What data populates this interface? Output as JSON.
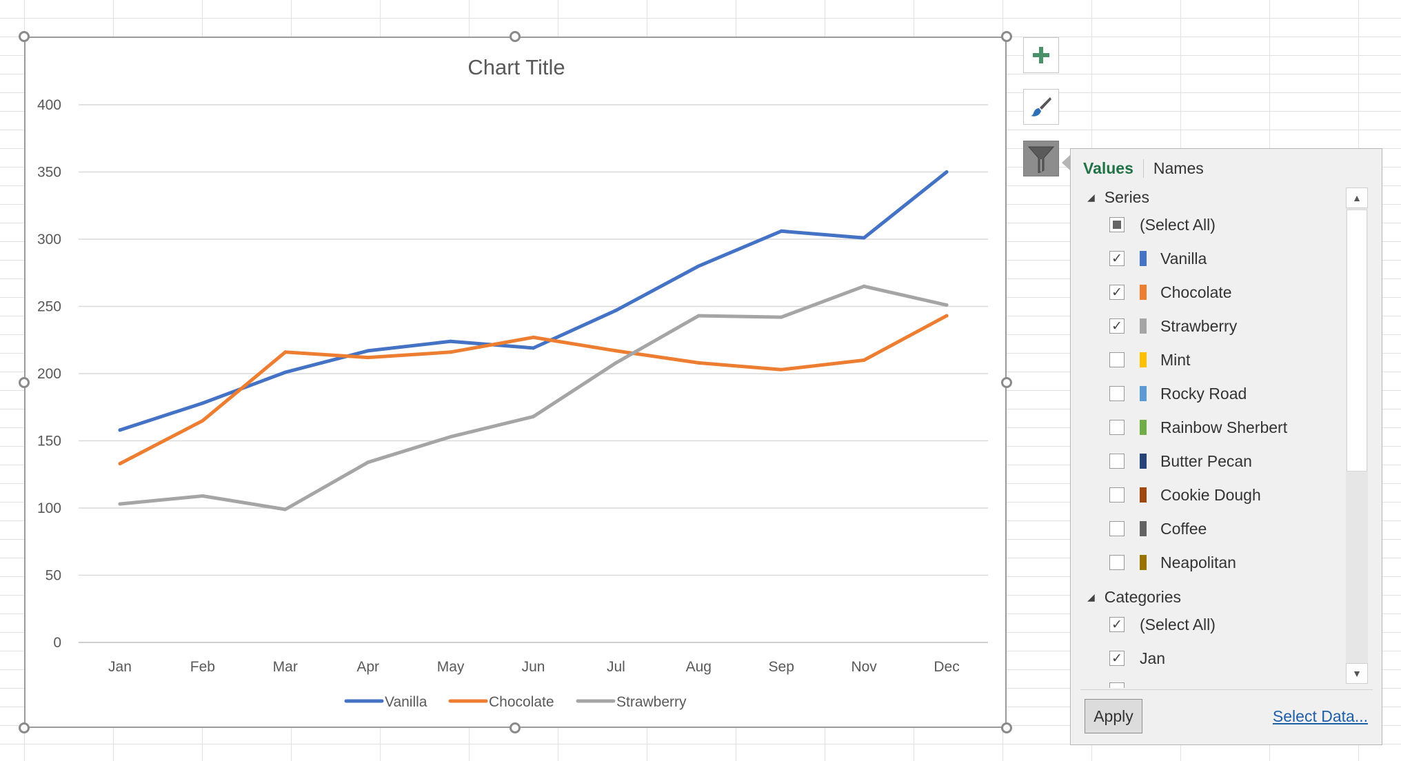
{
  "chart_data": {
    "type": "line",
    "title": "Chart Title",
    "categories": [
      "Jan",
      "Feb",
      "Mar",
      "Apr",
      "May",
      "Jun",
      "Jul",
      "Aug",
      "Sep",
      "Nov",
      "Dec"
    ],
    "series": [
      {
        "name": "Vanilla",
        "color": "#4472c4",
        "values": [
          158,
          178,
          201,
          217,
          224,
          219,
          247,
          280,
          306,
          301,
          350
        ]
      },
      {
        "name": "Chocolate",
        "color": "#ed7d31",
        "values": [
          133,
          165,
          216,
          212,
          216,
          227,
          217,
          208,
          203,
          210,
          243
        ]
      },
      {
        "name": "Strawberry",
        "color": "#a5a5a5",
        "values": [
          103,
          109,
          99,
          134,
          153,
          168,
          208,
          243,
          242,
          265,
          251
        ]
      }
    ],
    "yticks": [
      "0",
      "50",
      "100",
      "150",
      "200",
      "250",
      "300",
      "350",
      "400"
    ],
    "ylim": [
      0,
      400
    ],
    "grid": true,
    "legend": "bottom"
  },
  "side_buttons": [
    {
      "name": "chart-elements-button",
      "icon": "plus-icon"
    },
    {
      "name": "chart-styles-button",
      "icon": "paintbrush-icon"
    },
    {
      "name": "chart-filters-button",
      "icon": "filter-funnel-icon"
    }
  ],
  "filter_panel": {
    "tabs": {
      "values": "Values",
      "names": "Names"
    },
    "series_header": "Series",
    "series_items": [
      {
        "label": "(Select All)",
        "state": "partial",
        "color": ""
      },
      {
        "label": "Vanilla",
        "state": "checked",
        "color": "#4472c4"
      },
      {
        "label": "Chocolate",
        "state": "checked",
        "color": "#ed7d31"
      },
      {
        "label": "Strawberry",
        "state": "checked",
        "color": "#a5a5a5"
      },
      {
        "label": "Mint",
        "state": "unchecked",
        "color": "#ffc000"
      },
      {
        "label": "Rocky Road",
        "state": "unchecked",
        "color": "#5b9bd5"
      },
      {
        "label": "Rainbow Sherbert",
        "state": "unchecked",
        "color": "#70ad47"
      },
      {
        "label": "Butter Pecan",
        "state": "unchecked",
        "color": "#264478"
      },
      {
        "label": "Cookie Dough",
        "state": "unchecked",
        "color": "#9e480e"
      },
      {
        "label": "Coffee",
        "state": "unchecked",
        "color": "#636363"
      },
      {
        "label": "Neapolitan",
        "state": "unchecked",
        "color": "#997300"
      }
    ],
    "categories_header": "Categories",
    "category_items": [
      {
        "label": "(Select All)",
        "state": "checked"
      },
      {
        "label": "Jan",
        "state": "checked"
      }
    ],
    "apply_label": "Apply",
    "select_data_label": "Select Data..."
  }
}
